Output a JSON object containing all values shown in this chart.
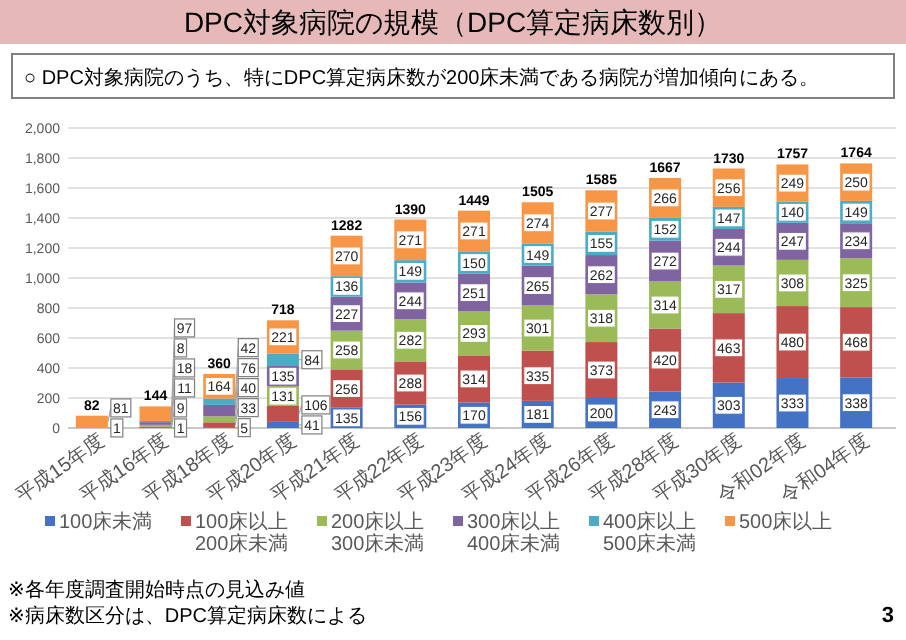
{
  "chart_data": {
    "type": "bar",
    "stacked": true,
    "title": "DPC対象病院の規模（DPC算定病床数別）",
    "subtitle": "○ DPC対象病院のうち、特にDPC算定病床数が200床未満である病院が増加傾向にある。",
    "categories": [
      "平成15年度",
      "平成16年度",
      "平成18年度",
      "平成20年度",
      "平成21年度",
      "平成22年度",
      "平成23年度",
      "平成24年度",
      "平成26年度",
      "平成28年度",
      "平成30年度",
      "令和02年度",
      "令和04年度"
    ],
    "series": [
      {
        "name": "100床未満",
        "color": "#4472c4",
        "values": [
          0,
          1,
          5,
          41,
          135,
          156,
          170,
          181,
          200,
          243,
          303,
          333,
          338
        ],
        "value_labels": [
          null,
          "1",
          "5",
          "41",
          "135",
          "156",
          "170",
          "181",
          "200",
          "243",
          "303",
          "333",
          "338"
        ]
      },
      {
        "name": "100床以上200床未満",
        "color": "#c0504d",
        "values": [
          0,
          9,
          33,
          106,
          256,
          288,
          314,
          335,
          373,
          420,
          463,
          480,
          468
        ],
        "value_labels": [
          null,
          "9",
          "33",
          "106",
          "256",
          "288",
          "314",
          "335",
          "373",
          "420",
          "463",
          "480",
          "468"
        ]
      },
      {
        "name": "200床以上300床未満",
        "color": "#9bbb59",
        "values": [
          0,
          11,
          40,
          131,
          258,
          282,
          293,
          301,
          318,
          314,
          317,
          308,
          325
        ],
        "value_labels": [
          null,
          "11",
          "40",
          "131",
          "258",
          "282",
          "293",
          "301",
          "318",
          "314",
          "317",
          "308",
          "325"
        ]
      },
      {
        "name": "300床以上400床未満",
        "color": "#8064a2",
        "values": [
          0,
          18,
          76,
          135,
          227,
          244,
          251,
          265,
          262,
          272,
          244,
          247,
          234
        ],
        "value_labels": [
          null,
          "18",
          "76",
          "135",
          "227",
          "244",
          "251",
          "265",
          "262",
          "272",
          "244",
          "247",
          "234"
        ]
      },
      {
        "name": "400床以上500床未満",
        "color": "#4bacc6",
        "values": [
          1,
          8,
          42,
          84,
          136,
          149,
          150,
          149,
          155,
          152,
          147,
          140,
          149
        ],
        "value_labels": [
          "1",
          "8",
          "42",
          "84",
          "136",
          "149",
          "150",
          "149",
          "155",
          "152",
          "147",
          "140",
          "149"
        ]
      },
      {
        "name": "500床以上",
        "color": "#f79646",
        "values": [
          81,
          97,
          164,
          221,
          270,
          271,
          271,
          274,
          277,
          266,
          256,
          249,
          250
        ],
        "value_labels": [
          "81",
          "97",
          "164",
          "221",
          "270",
          "271",
          "271",
          "274",
          "277",
          "266",
          "256",
          "249",
          "250"
        ]
      }
    ],
    "totals": [
      "82",
      "144",
      "360",
      "718",
      "1282",
      "1390",
      "1449",
      "1505",
      "1585",
      "1667",
      "1730",
      "1757",
      "1764"
    ],
    "ylim": [
      0,
      2000
    ],
    "yticks": [
      0,
      200,
      400,
      600,
      800,
      {
        "value": 1000,
        "label": "1,000"
      },
      {
        "value": 1200,
        "label": "1,200"
      },
      {
        "value": 1400,
        "label": "1,400"
      },
      {
        "value": 1600,
        "label": "1,600"
      },
      {
        "value": 1800,
        "label": "1,800"
      },
      {
        "value": 2000,
        "label": "2,000"
      }
    ],
    "grid": "y",
    "legend": "bottom",
    "annotations": [
      "※各年度調査開始時点の見込み値",
      "※病床数区分は、DPC算定病床数による",
      "3"
    ]
  }
}
